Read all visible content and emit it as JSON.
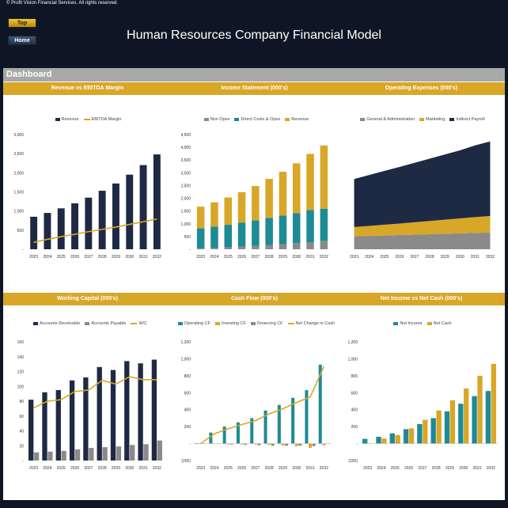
{
  "header": {
    "copyright": "© Profit Vision Financial Services. All rights reserved.",
    "top_label": "Top",
    "home_label": "Home",
    "title": "Human Resources Company Financial Model"
  },
  "dashboard": {
    "label": "Dashboard"
  },
  "colors": {
    "navy": "#1e2a44",
    "gold": "#d8a728",
    "teal": "#1d8a95",
    "grey": "#8a8a8a",
    "header_grey": "#a8a8a8"
  },
  "chart_data": [
    {
      "type": "bar",
      "title": "Revenue vs EBITDA Margin",
      "categories": [
        "2023",
        "2024",
        "2025",
        "2026",
        "2027",
        "2028",
        "2029",
        "2030",
        "2031",
        "2032"
      ],
      "ylim": [
        0,
        3000
      ],
      "yticks": [
        "-",
        "500",
        "1,000",
        "1,500",
        "2,000",
        "2,500",
        "3,000"
      ],
      "series": [
        {
          "name": "Revenue",
          "kind": "bar",
          "color": "#1e2a44",
          "values": [
            850,
            950,
            1070,
            1200,
            1350,
            1530,
            1720,
            1950,
            2200,
            2480
          ]
        },
        {
          "name": "EBITDA Margin",
          "kind": "line",
          "color": "#d8a728",
          "values": [
            180,
            260,
            330,
            390,
            460,
            520,
            580,
            650,
            720,
            790
          ]
        }
      ]
    },
    {
      "type": "bar",
      "stacked": true,
      "title": "Income Statement (000's)",
      "categories": [
        "2023",
        "2024",
        "2025",
        "2026",
        "2027",
        "2028",
        "2029",
        "2030",
        "2031",
        "2032"
      ],
      "ylim": [
        0,
        4500
      ],
      "yticks": [
        "-",
        "500",
        "1,000",
        "1,500",
        "2,000",
        "2,500",
        "3,000",
        "3,500",
        "4,000",
        "4,500"
      ],
      "series": [
        {
          "name": "Non Opex",
          "color": "#8a8a8a",
          "values": [
            40,
            60,
            80,
            100,
            130,
            160,
            200,
            240,
            280,
            330
          ]
        },
        {
          "name": "Direct Costs & Opex",
          "color": "#1d8a95",
          "values": [
            780,
            830,
            880,
            940,
            1000,
            1070,
            1120,
            1180,
            1260,
            1260
          ]
        },
        {
          "name": "Revenue",
          "color": "#d8a728",
          "values": [
            850,
            950,
            1070,
            1200,
            1350,
            1530,
            1720,
            1950,
            2200,
            2480
          ]
        }
      ]
    },
    {
      "type": "area",
      "stacked": true,
      "title": "Operating Expenses (000's)",
      "categories": [
        "2023",
        "2024",
        "2025",
        "2026",
        "2027",
        "2028",
        "2029",
        "2030",
        "2031",
        "2032"
      ],
      "ylim": [
        0,
        800
      ],
      "yticks": [],
      "series": [
        {
          "name": "General & Administration",
          "color": "#8a8a8a",
          "values": [
            90,
            93,
            96,
            99,
            102,
            105,
            108,
            111,
            114,
            117
          ]
        },
        {
          "name": "Marketing",
          "color": "#d8a728",
          "values": [
            65,
            70,
            75,
            80,
            86,
            92,
            98,
            104,
            110,
            115
          ]
        },
        {
          "name": "Indirect Payroll",
          "color": "#1e2a44",
          "values": [
            335,
            355,
            375,
            395,
            415,
            435,
            455,
            475,
            500,
            520
          ]
        }
      ]
    },
    {
      "type": "bar",
      "title": "Working Capital (000's)",
      "categories": [
        "2023",
        "2024",
        "2025",
        "2026",
        "2027",
        "2028",
        "2029",
        "2030",
        "2031",
        "2032"
      ],
      "ylim": [
        0,
        160
      ],
      "yticks": [
        "-",
        "20",
        "40",
        "60",
        "80",
        "100",
        "120",
        "140",
        "160"
      ],
      "series": [
        {
          "name": "Accounts Receivable",
          "kind": "bar",
          "color": "#1e2a44",
          "values": [
            82,
            92,
            95,
            108,
            112,
            126,
            122,
            134,
            131,
            136
          ]
        },
        {
          "name": "Accounts Payable",
          "kind": "bar",
          "color": "#8a8a8a",
          "values": [
            11,
            12,
            13,
            15,
            17,
            18,
            19,
            21,
            22,
            27
          ]
        },
        {
          "name": "W/C",
          "kind": "line",
          "color": "#d8a728",
          "values": [
            71,
            80,
            82,
            93,
            95,
            108,
            103,
            113,
            109,
            109
          ]
        }
      ]
    },
    {
      "type": "bar",
      "title": "Cash Flow (000's)",
      "categories": [
        "2023",
        "2024",
        "2025",
        "2026",
        "2027",
        "2028",
        "2029",
        "2030",
        "2031",
        "2032"
      ],
      "ylim": [
        -200,
        1200
      ],
      "yticks": [
        "(200)",
        "-",
        "200",
        "400",
        "600",
        "800",
        "1,000",
        "1,200"
      ],
      "series": [
        {
          "name": "Operating CF",
          "kind": "bar",
          "color": "#1d8a95",
          "values": [
            5,
            130,
            200,
            250,
            300,
            390,
            455,
            540,
            630,
            930
          ]
        },
        {
          "name": "Investing CF",
          "kind": "bar",
          "color": "#d8a728",
          "values": [
            -5,
            -5,
            -10,
            -10,
            -10,
            -15,
            -20,
            -30,
            -50,
            -20
          ]
        },
        {
          "name": "Financing CF",
          "kind": "bar",
          "color": "#8a8a8a",
          "values": [
            0,
            -5,
            -10,
            -15,
            -20,
            -25,
            -25,
            -25,
            -30,
            0
          ]
        },
        {
          "name": "Net Change in Cash",
          "kind": "line",
          "color": "#d8a728",
          "values": [
            0,
            115,
            175,
            225,
            270,
            350,
            410,
            485,
            550,
            910
          ]
        }
      ]
    },
    {
      "type": "bar",
      "title": "Net Income vs Net Cash (000's)",
      "categories": [
        "2023",
        "2024",
        "2025",
        "2026",
        "2027",
        "2028",
        "2029",
        "2030",
        "2031",
        "2032"
      ],
      "ylim": [
        -200,
        1200
      ],
      "yticks": [
        "(200)",
        "-",
        "200",
        "400",
        "600",
        "800",
        "1,000",
        "1,200"
      ],
      "series": [
        {
          "name": "Net Income",
          "kind": "bar",
          "color": "#1d8a95",
          "values": [
            55,
            80,
            120,
            170,
            230,
            300,
            380,
            470,
            560,
            620
          ]
        },
        {
          "name": "Net Cash",
          "kind": "bar",
          "color": "#d8a728",
          "values": [
            0,
            60,
            100,
            180,
            280,
            390,
            510,
            650,
            800,
            940
          ]
        }
      ]
    }
  ]
}
